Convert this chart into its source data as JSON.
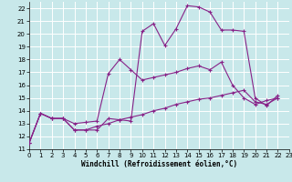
{
  "background_color": "#c8e8ea",
  "grid_color": "#ffffff",
  "line_color": "#882288",
  "xlim": [
    0,
    23
  ],
  "ylim": [
    11,
    22.5
  ],
  "xticks": [
    0,
    1,
    2,
    3,
    4,
    5,
    6,
    7,
    8,
    9,
    10,
    11,
    12,
    13,
    14,
    15,
    16,
    17,
    18,
    19,
    20,
    21,
    22,
    23
  ],
  "yticks": [
    11,
    12,
    13,
    14,
    15,
    16,
    17,
    18,
    19,
    20,
    21,
    22
  ],
  "xlabel": "Windchill (Refroidissement éolien,°C)",
  "line1_x": [
    0,
    1,
    2,
    3,
    4,
    5,
    6,
    7,
    8,
    9,
    10,
    11,
    12,
    13,
    14,
    15,
    16,
    17,
    18,
    19,
    20,
    21,
    22
  ],
  "line1_y": [
    11.5,
    13.8,
    13.4,
    13.4,
    12.5,
    12.5,
    12.5,
    13.4,
    13.3,
    13.2,
    20.2,
    20.8,
    19.1,
    20.4,
    22.2,
    22.1,
    21.7,
    20.3,
    20.3,
    20.2,
    15.0,
    14.4,
    15.2
  ],
  "line2_x": [
    0,
    1,
    2,
    3,
    4,
    5,
    6,
    7,
    8,
    9,
    10,
    11,
    12,
    13,
    14,
    15,
    16,
    17,
    18,
    19,
    20,
    21,
    22
  ],
  "line2_y": [
    11.5,
    13.8,
    13.4,
    13.4,
    13.0,
    13.1,
    13.2,
    16.9,
    18.0,
    17.2,
    16.4,
    16.6,
    16.8,
    17.0,
    17.3,
    17.5,
    17.2,
    17.8,
    16.0,
    15.0,
    14.5,
    14.8,
    15.0
  ],
  "line3_x": [
    0,
    1,
    2,
    3,
    4,
    5,
    6,
    7,
    8,
    9,
    10,
    11,
    12,
    13,
    14,
    15,
    16,
    17,
    18,
    19,
    20,
    21,
    22
  ],
  "line3_y": [
    11.5,
    13.8,
    13.4,
    13.4,
    12.5,
    12.5,
    12.8,
    13.0,
    13.3,
    13.5,
    13.7,
    14.0,
    14.2,
    14.5,
    14.7,
    14.9,
    15.0,
    15.2,
    15.4,
    15.6,
    14.7,
    14.5,
    15.0
  ],
  "tick_labelsize": 5,
  "xlabel_fontsize": 5.5,
  "marker_size": 3,
  "linewidth": 0.8
}
